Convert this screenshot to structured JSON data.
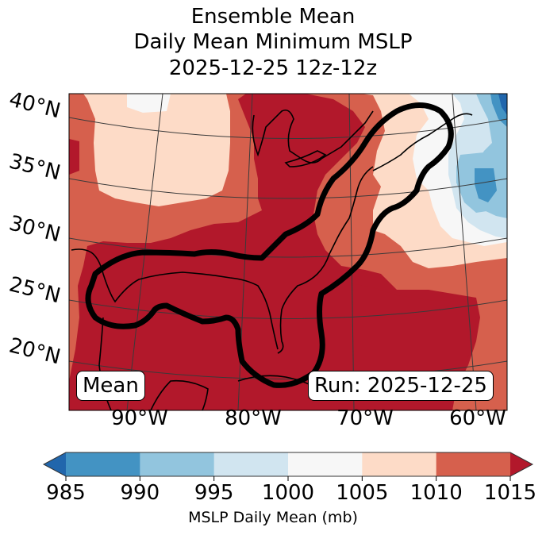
{
  "title": {
    "line1": "Ensemble Mean",
    "line2": "Daily Mean Minimum MSLP",
    "line3": "2025-12-25 12z-12z"
  },
  "chart_data": {
    "type": "heatmap",
    "title": "Ensemble Mean Daily Mean Minimum MSLP 2025-12-25 12z-12z",
    "map_region": "Eastern North America / Gulf of Mexico / Western Atlantic",
    "lat_ticks": [
      "40°N",
      "35°N",
      "30°N",
      "25°N",
      "20°N"
    ],
    "lon_ticks": [
      "90°W",
      "80°W",
      "70°W",
      "60°W"
    ],
    "gridlines": true,
    "coastlines": true,
    "contour": "thick black outline enclosing the Gulf of Mexico, Florida and the US East Coast up to Nova Scotia",
    "colorbar": {
      "label": "MSLP Daily Mean (mb)",
      "ticks": [
        985,
        990,
        995,
        1000,
        1005,
        1010,
        1015
      ],
      "tick_labels": [
        "985",
        "990",
        "995",
        "1000",
        "1005",
        "1010",
        "1015"
      ],
      "bins": [
        {
          "range": "<985",
          "color": "#2166ac"
        },
        {
          "range": "985-990",
          "color": "#4393c3"
        },
        {
          "range": "990-995",
          "color": "#92c5de"
        },
        {
          "range": "995-1000",
          "color": "#d1e5f0"
        },
        {
          "range": "1000-1005",
          "color": "#f7f7f7"
        },
        {
          "range": "1005-1010",
          "color": "#fddbc7"
        },
        {
          "range": "1010-1015",
          "color": "#d6604d"
        },
        {
          "range": ">1015",
          "color": "#b2182b"
        }
      ],
      "extend": "both",
      "orientation": "horizontal"
    },
    "regions": [
      {
        "area": "Gulf of Mexico, Southeast US, Caribbean",
        "range": ">1015"
      },
      {
        "area": "Central Plains / Midwest",
        "range": "1005-1010"
      },
      {
        "area": "Great Lakes / Ohio Valley",
        "range": ">1015"
      },
      {
        "area": "Mid-Atlantic offshore",
        "range": "1010-1015"
      },
      {
        "area": "Gulf of Maine / Nova Scotia",
        "range": "1000-1005"
      },
      {
        "area": "Western Atlantic east of Nova Scotia",
        "range": "985-995"
      },
      {
        "area": "Far NE corner (Newfoundland)",
        "range": "<985"
      }
    ]
  },
  "badges": {
    "left": "Mean",
    "right": "Run: 2025-12-25"
  }
}
